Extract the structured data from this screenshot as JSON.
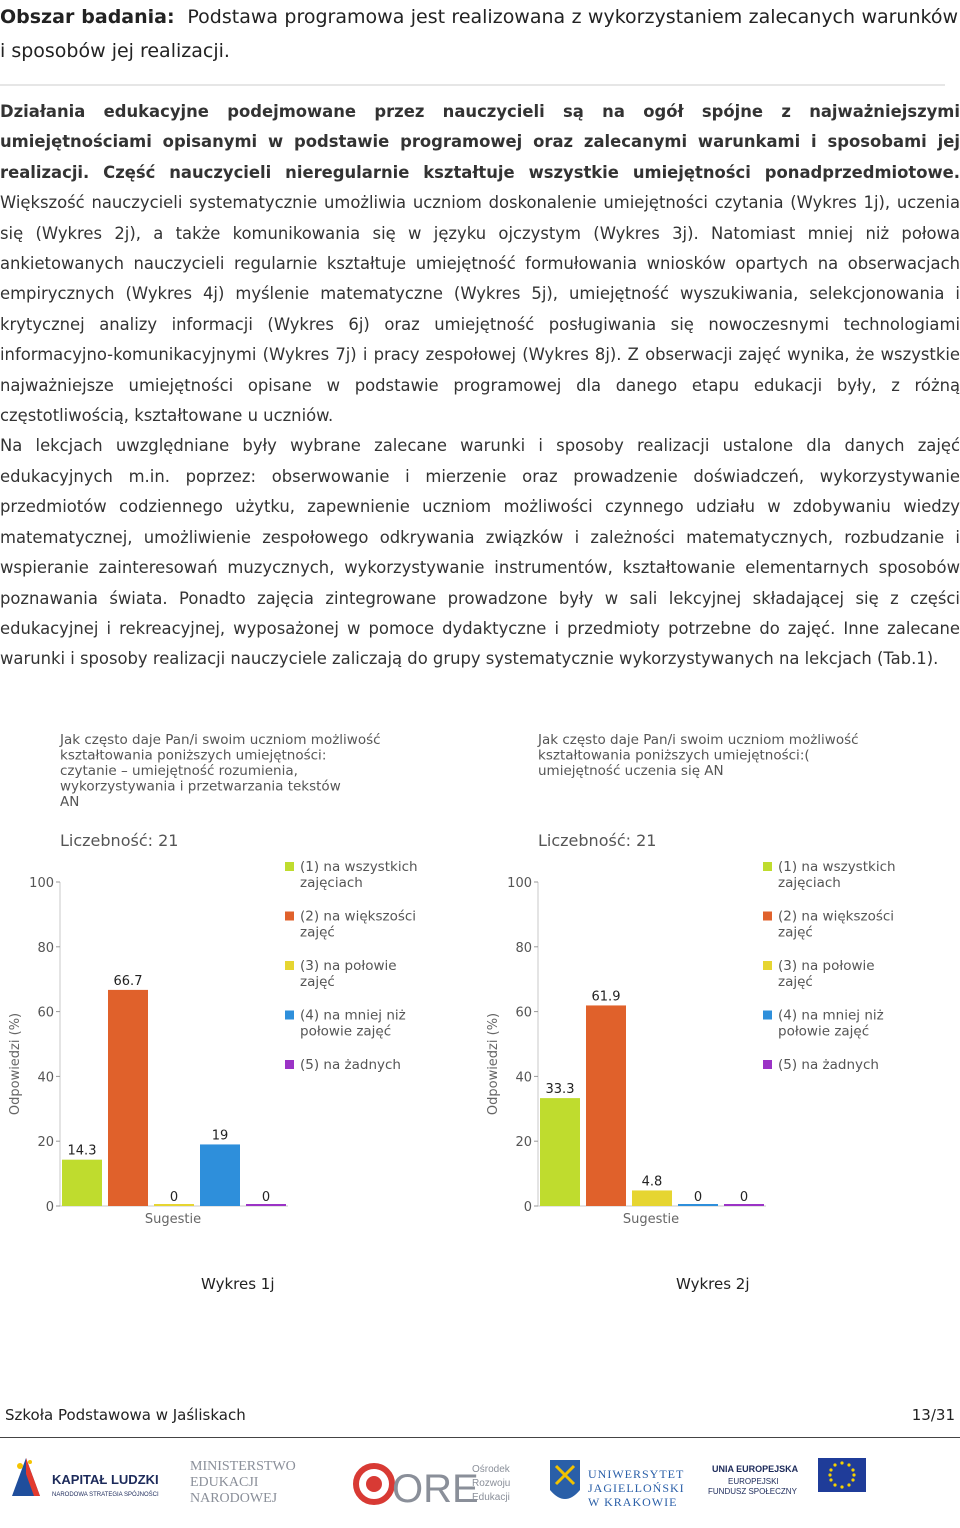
{
  "intro": {
    "label": "Obszar badania:",
    "text": "Podstawa programowa jest realizowana z wykorzystaniem zalecanych warunków i sposobów jej realizacji."
  },
  "paragraphs": {
    "p1_bold": "Działania edukacyjne podejmowane przez nauczycieli są na ogół spójne z najważniejszymi umiejętnościami opisanymi w podstawie programowej oraz zalecanymi warunkami i sposobami jej realizacji. Część nauczycieli nieregularnie kształtuje wszystkie umiejętności ponadprzedmiotowe.",
    "p1_rest": " Większość nauczycieli systematycznie umożliwia uczniom doskonalenie umiejętności czytania (Wykres 1j), uczenia się (Wykres 2j), a także komunikowania się w języku ojczystym (Wykres 3j). Natomiast mniej niż połowa ankietowanych nauczycieli regularnie kształtuje umiejętność formułowania wniosków opartych na obserwacjach empirycznych (Wykres 4j) myślenie matematyczne (Wykres 5j), umiejętność wyszukiwania, selekcjonowania i krytycznej analizy informacji (Wykres 6j) oraz umiejętność posługiwania się nowoczesnymi technologiami informacyjno-komunikacyjnymi (Wykres 7j) i pracy zespołowej (Wykres 8j). Z obserwacji zajęć wynika, że wszystkie najważniejsze umiejętności opisane w podstawie programowej dla danego etapu edukacji były, z różną częstotliwością, kształtowane u uczniów.",
    "p2": "Na lekcjach uwzględniane były wybrane zalecane warunki i sposoby realizacji ustalone dla danych zajęć edukacyjnych m.in. poprzez: obserwowanie i mierzenie oraz prowadzenie doświadczeń, wykorzystywanie przedmiotów codziennego użytku, zapewnienie uczniom możliwości czynnego udziału w zdobywaniu wiedzy matematycznej, umożliwienie zespołowego odkrywania związków i zależności matematycznych, rozbudzanie i wspieranie zainteresowań muzycznych, wykorzystywanie instrumentów, kształtowanie elementarnych sposobów poznawania świata. Ponadto zajęcia zintegrowane prowadzone były w sali lekcyjnej składającej się z części edukacyjnej i rekreacyjnej, wyposażonej w pomoce dydaktyczne i przedmioty potrzebne do zajęć. Inne zalecane warunki i sposoby realizacji nauczyciele zaliczają do grupy systematycznie wykorzystywanych na lekcjach (Tab.1)."
  },
  "chart_data": [
    {
      "type": "bar",
      "title_lines": [
        "Jak często daje Pan/i swoim uczniom możliwość",
        "kształtowania poniższych umiejętności:",
        "czytanie – umiejętność rozumienia,",
        "wykorzystywania i przetwarzania tekstów",
        "AN"
      ],
      "count_label": "Liczebność: 21",
      "ylabel": "Odpowiedzi (%)",
      "xlabel": "Sugestie",
      "ylim": [
        0,
        100
      ],
      "yticks": [
        "0",
        "20",
        "40",
        "60",
        "80",
        "100"
      ],
      "categories": [
        "(1) na wszystkich zajęciach",
        "(2) na większości zajęć",
        "(3) na połowie zajęć",
        "(4) na mniej niż połowie zajęć",
        "(5) na żadnych"
      ],
      "values": [
        14.3,
        66.7,
        0,
        19,
        0
      ],
      "value_labels": [
        "14.3",
        "66.7",
        "0",
        "19",
        "0"
      ],
      "legend": [
        {
          "lines": [
            "(1) na wszystkich",
            "zajęciach"
          ],
          "color": "#bfdc2e"
        },
        {
          "lines": [
            "(2) na większości",
            "zajęć"
          ],
          "color": "#e0612b"
        },
        {
          "lines": [
            "(3) na połowie",
            "zajęć"
          ],
          "color": "#e6d531"
        },
        {
          "lines": [
            "(4) na mniej niż",
            "połowie zajęć"
          ],
          "color": "#2e8fdb"
        },
        {
          "lines": [
            "(5) na żadnych"
          ],
          "color": "#9b33c6"
        }
      ]
    },
    {
      "type": "bar",
      "title_lines": [
        "Jak często daje Pan/i swoim uczniom możliwość",
        "kształtowania poniższych umiejętności:(",
        "umiejętność uczenia się AN"
      ],
      "count_label": "Liczebność: 21",
      "ylabel": "Odpowiedzi (%)",
      "xlabel": "Sugestie",
      "ylim": [
        0,
        100
      ],
      "yticks": [
        "0",
        "20",
        "40",
        "60",
        "80",
        "100"
      ],
      "categories": [
        "(1) na wszystkich zajęciach",
        "(2) na większości zajęć",
        "(3) na połowie zajęć",
        "(4) na mniej niż połowie zajęć",
        "(5) na żadnych"
      ],
      "values": [
        33.3,
        61.9,
        4.8,
        0,
        0
      ],
      "value_labels": [
        "33.3",
        "61.9",
        "4.8",
        "0",
        "0"
      ],
      "legend": [
        {
          "lines": [
            "(1) na wszystkich",
            "zajęciach"
          ],
          "color": "#bfdc2e"
        },
        {
          "lines": [
            "(2) na większości",
            "zajęć"
          ],
          "color": "#e0612b"
        },
        {
          "lines": [
            "(3) na połowie",
            "zajęć"
          ],
          "color": "#e6d531"
        },
        {
          "lines": [
            "(4) na mniej niż",
            "połowie zajęć"
          ],
          "color": "#2e8fdb"
        },
        {
          "lines": [
            "(5) na żadnych"
          ],
          "color": "#9b33c6"
        }
      ]
    }
  ],
  "captions": [
    "Wykres 1j",
    "Wykres 2j"
  ],
  "footer": {
    "school": "Szkoła Podstawowa w Jaśliskach",
    "page": "13/31"
  },
  "logos": {
    "kl_line1": "KAPITAŁ LUDZKI",
    "kl_line2": "NARODOWA STRATEGIA SPÓJNOŚCI",
    "men_line1": "MINISTERSTWO",
    "men_line2": "EDUKACJI",
    "men_line3": "NARODOWEJ",
    "ore_name": "ORE",
    "ore_line1": "Ośrodek",
    "ore_line2": "Rozwoju",
    "ore_line3": "Edukacji",
    "uj_line1": "UNIWERSYTET",
    "uj_line2": "JAGIELLOŃSKI",
    "uj_line3": "W KRAKOWIE",
    "ue_line1": "UNIA EUROPEJSKA",
    "ue_line2": "EUROPEJSKI",
    "ue_line3": "FUNDUSZ SPOŁECZNY"
  }
}
